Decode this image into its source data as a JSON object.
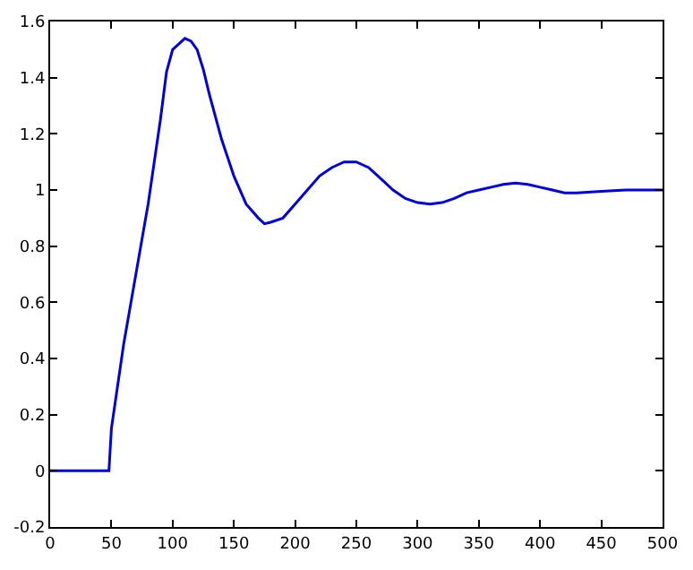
{
  "chart_data": {
    "type": "line",
    "x": [
      0,
      48,
      50,
      55,
      60,
      70,
      80,
      90,
      95,
      100,
      105,
      110,
      115,
      120,
      125,
      130,
      140,
      150,
      160,
      170,
      175,
      180,
      190,
      200,
      210,
      220,
      230,
      240,
      250,
      260,
      270,
      280,
      290,
      300,
      310,
      320,
      330,
      340,
      350,
      360,
      370,
      380,
      390,
      400,
      410,
      420,
      430,
      450,
      470,
      500
    ],
    "series": [
      {
        "color": "#0000e0",
        "values": [
          0,
          0,
          0.15,
          0.3,
          0.45,
          0.7,
          0.95,
          1.25,
          1.42,
          1.5,
          1.52,
          1.54,
          1.53,
          1.5,
          1.43,
          1.34,
          1.18,
          1.05,
          0.95,
          0.9,
          0.88,
          0.885,
          0.9,
          0.95,
          1.0,
          1.05,
          1.08,
          1.1,
          1.1,
          1.08,
          1.04,
          1.0,
          0.97,
          0.955,
          0.95,
          0.955,
          0.97,
          0.99,
          1.0,
          1.01,
          1.02,
          1.025,
          1.02,
          1.01,
          1.0,
          0.99,
          0.99,
          0.995,
          1.0,
          1.0
        ]
      }
    ],
    "xlim": [
      0,
      500
    ],
    "xticks": [
      0,
      50,
      100,
      150,
      200,
      250,
      300,
      350,
      400,
      450,
      500
    ],
    "ylim": [
      -0.2,
      1.6
    ],
    "yticks": [
      -0.2,
      0,
      0.2,
      0.4,
      0.6,
      0.8,
      1,
      1.2,
      1.4,
      1.6
    ],
    "marker": "none",
    "line_style": "solid"
  }
}
